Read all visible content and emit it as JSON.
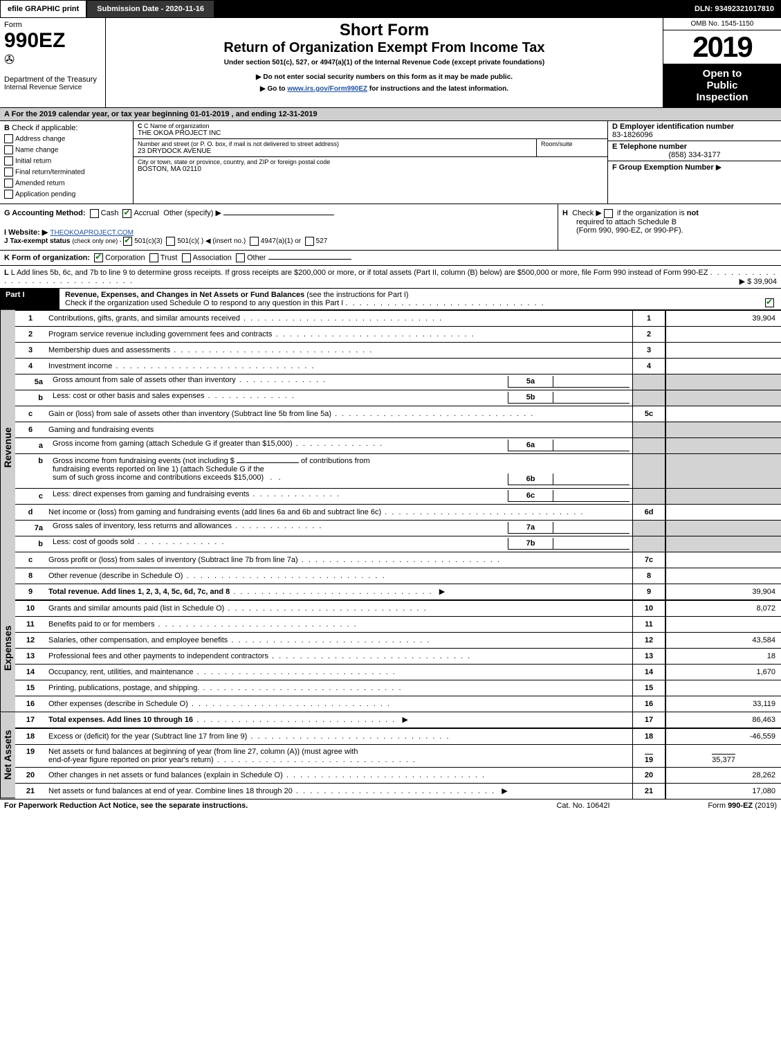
{
  "topbar": {
    "efile": "efile GRAPHIC print",
    "submission": "Submission Date - 2020-11-16",
    "dln": "DLN: 93492321017810"
  },
  "header": {
    "form_word": "Form",
    "form_no": "990EZ",
    "dept": "Department of the Treasury",
    "irs": "Internal Revenue Service",
    "short_form": "Short Form",
    "title": "Return of Organization Exempt From Income Tax",
    "subtitle": "Under section 501(c), 527, or 4947(a)(1) of the Internal Revenue Code (except private foundations)",
    "do_not": "Do not enter social security numbers on this form as it may be made public.",
    "goto_pre": "Go to ",
    "goto_link": "www.irs.gov/Form990EZ",
    "goto_post": " for instructions and the latest information.",
    "omb": "OMB No. 1545-1150",
    "year": "2019",
    "open1": "Open to",
    "open2": "Public",
    "open3": "Inspection"
  },
  "sectionA": {
    "a_text": "For the 2019 calendar year, or tax year beginning 01-01-2019 , and ending 12-31-2019",
    "b_label": "Check if applicable:",
    "b_opts": [
      "Address change",
      "Name change",
      "Initial return",
      "Final return/terminated",
      "Amended return",
      "Application pending"
    ],
    "c_label": "C Name of organization",
    "c_name": "THE OKOA PROJECT INC",
    "c_street_label": "Number and street (or P. O. box, if mail is not delivered to street address)",
    "c_room": "Room/suite",
    "c_street": "23 DRYDOCK AVENUE",
    "c_city_label": "City or town, state or province, country, and ZIP or foreign postal code",
    "c_city": "BOSTON, MA  02110",
    "d_label": "D Employer identification number",
    "d_ein": "83-1826096",
    "e_label": "E Telephone number",
    "e_phone": "(858) 334-3177",
    "f_label": "F Group Exemption Number",
    "f_arrow": "▶"
  },
  "gthruL": {
    "g_label": "G Accounting Method:",
    "g_cash": "Cash",
    "g_accrual": "Accrual",
    "g_other": "Other (specify) ▶",
    "h_text_pre": "Check ▶ ",
    "h_text": " if the organization is ",
    "h_not": "not",
    "h_text2": "required to attach Schedule B",
    "h_text3": "(Form 990, 990-EZ, or 990-PF).",
    "i_label": "I Website: ▶",
    "i_site": "THEOKOAPROJECT.COM",
    "j_label": "J Tax-exempt status",
    "j_sub": " (check only one) - ",
    "j_501c3": "501(c)(3)",
    "j_501c": "501(c)(  ) ◀ (insert no.)",
    "j_4947": "4947(a)(1) or",
    "j_527": "527",
    "k_label": "K Form of organization:",
    "k_corp": "Corporation",
    "k_trust": "Trust",
    "k_assoc": "Association",
    "k_other": "Other",
    "l_text": "L Add lines 5b, 6c, and 7b to line 9 to determine gross receipts. If gross receipts are $200,000 or more, or if total assets (Part II, column (B) below) are $500,000 or more, file Form 990 instead of Form 990-EZ",
    "l_amt_label": "▶ $ 39,904"
  },
  "part1": {
    "label": "Part I",
    "title": "Revenue, Expenses, and Changes in Net Assets or Fund Balances",
    "title2": " (see the instructions for Part I)",
    "check_text": "Check if the organization used Schedule O to respond to any question in this Part I"
  },
  "sidelabels": {
    "revenue": "Revenue",
    "expenses": "Expenses",
    "netassets": "Net Assets"
  },
  "lines": {
    "l1": {
      "n": "1",
      "d": "Contributions, gifts, grants, and similar amounts received",
      "amt": "39,904"
    },
    "l2": {
      "n": "2",
      "d": "Program service revenue including government fees and contracts",
      "amt": ""
    },
    "l3": {
      "n": "3",
      "d": "Membership dues and assessments",
      "amt": ""
    },
    "l4": {
      "n": "4",
      "d": "Investment income",
      "amt": ""
    },
    "l5a": {
      "n": "5a",
      "d": "Gross amount from sale of assets other than inventory",
      "box": "5a"
    },
    "l5b": {
      "n": "b",
      "d": "Less: cost or other basis and sales expenses",
      "box": "5b"
    },
    "l5c": {
      "n": "c",
      "d": "Gain or (loss) from sale of assets other than inventory (Subtract line 5b from line 5a)",
      "rt": "5c",
      "amt": ""
    },
    "l6": {
      "n": "6",
      "d": "Gaming and fundraising events"
    },
    "l6a": {
      "n": "a",
      "d": "Gross income from gaming (attach Schedule G if greater than $15,000)",
      "box": "6a"
    },
    "l6b": {
      "n": "b",
      "d": "Gross income from fundraising events (not including $",
      "d2": "of contributions from",
      "d3": "fundraising events reported on line 1) (attach Schedule G if the",
      "d4": "sum of such gross income and contributions exceeds $15,000)",
      "box": "6b"
    },
    "l6c": {
      "n": "c",
      "d": "Less: direct expenses from gaming and fundraising events",
      "box": "6c"
    },
    "l6d": {
      "n": "d",
      "d": "Net income or (loss) from gaming and fundraising events (add lines 6a and 6b and subtract line 6c)",
      "rt": "6d",
      "amt": ""
    },
    "l7a": {
      "n": "7a",
      "d": "Gross sales of inventory, less returns and allowances",
      "box": "7a"
    },
    "l7b": {
      "n": "b",
      "d": "Less: cost of goods sold",
      "box": "7b"
    },
    "l7c": {
      "n": "c",
      "d": "Gross profit or (loss) from sales of inventory (Subtract line 7b from line 7a)",
      "rt": "7c",
      "amt": ""
    },
    "l8": {
      "n": "8",
      "d": "Other revenue (describe in Schedule O)",
      "rt": "8",
      "amt": ""
    },
    "l9": {
      "n": "9",
      "d": "Total revenue. Add lines 1, 2, 3, 4, 5c, 6d, 7c, and 8",
      "rt": "9",
      "amt": "39,904",
      "arrow": true,
      "bold": true
    },
    "l10": {
      "n": "10",
      "d": "Grants and similar amounts paid (list in Schedule O)",
      "rt": "10",
      "amt": "8,072"
    },
    "l11": {
      "n": "11",
      "d": "Benefits paid to or for members",
      "rt": "11",
      "amt": ""
    },
    "l12": {
      "n": "12",
      "d": "Salaries, other compensation, and employee benefits",
      "rt": "12",
      "amt": "43,584"
    },
    "l13": {
      "n": "13",
      "d": "Professional fees and other payments to independent contractors",
      "rt": "13",
      "amt": "18"
    },
    "l14": {
      "n": "14",
      "d": "Occupancy, rent, utilities, and maintenance",
      "rt": "14",
      "amt": "1,670"
    },
    "l15": {
      "n": "15",
      "d": "Printing, publications, postage, and shipping.",
      "rt": "15",
      "amt": ""
    },
    "l16": {
      "n": "16",
      "d": "Other expenses (describe in Schedule O)",
      "rt": "16",
      "amt": "33,119"
    },
    "l17": {
      "n": "17",
      "d": "Total expenses. Add lines 10 through 16",
      "rt": "17",
      "amt": "86,463",
      "arrow": true,
      "bold": true
    },
    "l18": {
      "n": "18",
      "d": "Excess or (deficit) for the year (Subtract line 17 from line 9)",
      "rt": "18",
      "amt": "-46,559"
    },
    "l19": {
      "n": "19",
      "d": "Net assets or fund balances at beginning of year (from line 27, column (A)) (must agree with",
      "d2": "end-of-year figure reported on prior year's return)",
      "rt": "19",
      "amt": "35,377"
    },
    "l20": {
      "n": "20",
      "d": "Other changes in net assets or fund balances (explain in Schedule O)",
      "rt": "20",
      "amt": "28,262"
    },
    "l21": {
      "n": "21",
      "d": "Net assets or fund balances at end of year. Combine lines 18 through 20",
      "rt": "21",
      "amt": "17,080",
      "arrow": true
    }
  },
  "footer": {
    "left": "For Paperwork Reduction Act Notice, see the separate instructions.",
    "center": "Cat. No. 10642I",
    "right_pre": "Form ",
    "right_bold": "990-EZ",
    "right_post": " (2019)"
  },
  "colors": {
    "black": "#000000",
    "grey": "#d3d3d3",
    "sidegrey": "#cfcfcf",
    "link": "#2254a3",
    "check": "#1a7a1a"
  }
}
